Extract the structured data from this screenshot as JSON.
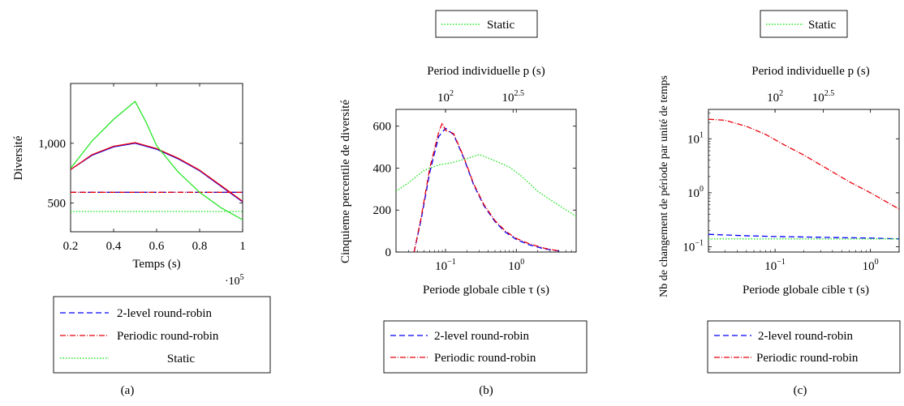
{
  "colors": {
    "blue": "#0000ff",
    "red": "#e8000b",
    "green": "#27e527",
    "axis": "#000000"
  },
  "chart_data": [
    {
      "id": "a",
      "type": "line",
      "caption": "(a)",
      "xlabel": "Temps (s)",
      "ylabel": "Diversité",
      "x_multiplier": "·10",
      "x_multiplier_exp": "5",
      "xlim": [
        0.2,
        1.0
      ],
      "ylim": [
        260,
        1500
      ],
      "xticks": [
        {
          "v": 0.2,
          "label": "0.2"
        },
        {
          "v": 0.4,
          "label": "0.4"
        },
        {
          "v": 0.6,
          "label": "0.6"
        },
        {
          "v": 0.8,
          "label": "0.8"
        },
        {
          "v": 1.0,
          "label": "1"
        }
      ],
      "yticks": [
        {
          "v": 500,
          "label": "500"
        },
        {
          "v": 1000,
          "label": "1,000"
        }
      ],
      "legend": {
        "placement": "bottom",
        "entries": [
          "2-level round-robin",
          "Periodic round-robin",
          "Static"
        ]
      },
      "series": [
        {
          "name": "2-level round-robin",
          "color": "blue",
          "style": "solid",
          "x": [
            0.2,
            0.3,
            0.4,
            0.5,
            0.6,
            0.7,
            0.8,
            0.9,
            1.0
          ],
          "y": [
            780,
            900,
            970,
            1000,
            950,
            870,
            770,
            640,
            510
          ]
        },
        {
          "name": "2-level round-robin",
          "color": "blue",
          "style": "dashed",
          "x": [
            0.2,
            1.0
          ],
          "y": [
            590,
            590
          ]
        },
        {
          "name": "Periodic round-robin",
          "color": "red",
          "style": "solid",
          "x": [
            0.2,
            0.3,
            0.4,
            0.5,
            0.6,
            0.7,
            0.8,
            0.9,
            1.0
          ],
          "y": [
            780,
            905,
            975,
            1005,
            955,
            875,
            775,
            645,
            515
          ]
        },
        {
          "name": "Periodic round-robin",
          "color": "red",
          "style": "dashdot",
          "x": [
            0.2,
            1.0
          ],
          "y": [
            590,
            590
          ]
        },
        {
          "name": "Static",
          "color": "green",
          "style": "solid",
          "x": [
            0.2,
            0.3,
            0.4,
            0.5,
            0.55,
            0.6,
            0.7,
            0.8,
            0.9,
            1.0
          ],
          "y": [
            790,
            1020,
            1200,
            1350,
            1180,
            980,
            760,
            590,
            460,
            360
          ]
        },
        {
          "name": "Static",
          "color": "green",
          "style": "dotted",
          "x": [
            0.2,
            1.0
          ],
          "y": [
            430,
            430
          ]
        }
      ]
    },
    {
      "id": "b",
      "type": "line",
      "caption": "(b)",
      "xlabel": "Periode globale cible τ (s)",
      "ylabel": "Cinquieme percentile de diversité",
      "top_xlabel": "Period individuelle p (s)",
      "x_scale": "log",
      "xlim": [
        0.02,
        7.0
      ],
      "ylim": [
        0,
        680
      ],
      "xticks": [
        {
          "v": 0.1,
          "label": "10",
          "exp": "−1"
        },
        {
          "v": 1,
          "label": "10",
          "exp": "0"
        }
      ],
      "top_xticks": [
        {
          "v": 0.1,
          "label": "10",
          "exp": "2"
        },
        {
          "v": 0.9,
          "label": "10",
          "exp": "2.5"
        }
      ],
      "yticks": [
        {
          "v": 0,
          "label": "0"
        },
        {
          "v": 200,
          "label": "200"
        },
        {
          "v": 400,
          "label": "400"
        },
        {
          "v": 600,
          "label": "600"
        }
      ],
      "legend_top": {
        "entries": [
          "Static"
        ]
      },
      "legend": {
        "placement": "bottom",
        "entries": [
          "2-level round-robin",
          "Periodic round-robin"
        ]
      },
      "series": [
        {
          "name": "2-level round-robin",
          "color": "blue",
          "style": "dashed",
          "x": [
            0.036,
            0.045,
            0.06,
            0.08,
            0.1,
            0.13,
            0.18,
            0.25,
            0.35,
            0.5,
            0.7,
            1.0,
            1.5,
            2.5,
            4.0
          ],
          "y": [
            0,
            150,
            380,
            550,
            590,
            560,
            450,
            320,
            220,
            145,
            95,
            60,
            35,
            15,
            5
          ]
        },
        {
          "name": "Periodic round-robin",
          "color": "red",
          "style": "dashdot",
          "x": [
            0.036,
            0.045,
            0.06,
            0.08,
            0.09,
            0.1,
            0.13,
            0.18,
            0.25,
            0.35,
            0.5,
            0.7,
            1.0,
            1.5,
            2.5,
            4.0
          ],
          "y": [
            0,
            160,
            400,
            570,
            615,
            580,
            565,
            455,
            325,
            225,
            150,
            100,
            65,
            40,
            18,
            5
          ]
        },
        {
          "name": "Static",
          "color": "green",
          "style": "dotted",
          "x": [
            0.02,
            0.03,
            0.05,
            0.08,
            0.12,
            0.2,
            0.3,
            0.5,
            0.8,
            1.2,
            2.0,
            3.5,
            7.0
          ],
          "y": [
            290,
            330,
            390,
            415,
            425,
            445,
            465,
            435,
            405,
            360,
            290,
            235,
            170
          ]
        }
      ]
    },
    {
      "id": "c",
      "type": "line",
      "caption": "(c)",
      "xlabel": "Periode globale cible τ (s)",
      "ylabel": "Nb de changement de période par unité de temps",
      "top_xlabel": "Period individuelle p (s)",
      "x_scale": "log",
      "y_scale": "log",
      "xlim": [
        0.02,
        2.0
      ],
      "ylim": [
        0.08,
        35
      ],
      "xticks": [
        {
          "v": 0.1,
          "label": "10",
          "exp": "−1"
        },
        {
          "v": 1,
          "label": "10",
          "exp": "0"
        }
      ],
      "top_xticks": [
        {
          "v": 0.1,
          "label": "10",
          "exp": "2"
        },
        {
          "v": 0.32,
          "label": "10",
          "exp": "2.5"
        }
      ],
      "yticks": [
        {
          "v": 0.1,
          "label": "10",
          "exp": "−1"
        },
        {
          "v": 1,
          "label": "10",
          "exp": "0"
        },
        {
          "v": 10,
          "label": "10",
          "exp": "1"
        }
      ],
      "legend_top": {
        "entries": [
          "Static"
        ]
      },
      "legend": {
        "placement": "bottom",
        "entries": [
          "2-level round-robin",
          "Periodic round-robin"
        ]
      },
      "series": [
        {
          "name": "2-level round-robin",
          "color": "blue",
          "style": "dashed",
          "x": [
            0.02,
            0.05,
            0.1,
            0.3,
            1.0,
            2.0
          ],
          "y": [
            0.17,
            0.16,
            0.155,
            0.15,
            0.145,
            0.14
          ]
        },
        {
          "name": "Periodic round-robin",
          "color": "red",
          "style": "dashdot",
          "x": [
            0.02,
            0.03,
            0.05,
            0.08,
            0.12,
            0.2,
            0.35,
            0.6,
            1.0,
            2.0
          ],
          "y": [
            23,
            22,
            17,
            12,
            8,
            5,
            2.8,
            1.6,
            1.0,
            0.5
          ]
        },
        {
          "name": "Static",
          "color": "green",
          "style": "dotted",
          "x": [
            0.02,
            2.0
          ],
          "y": [
            0.14,
            0.14
          ]
        }
      ]
    }
  ]
}
